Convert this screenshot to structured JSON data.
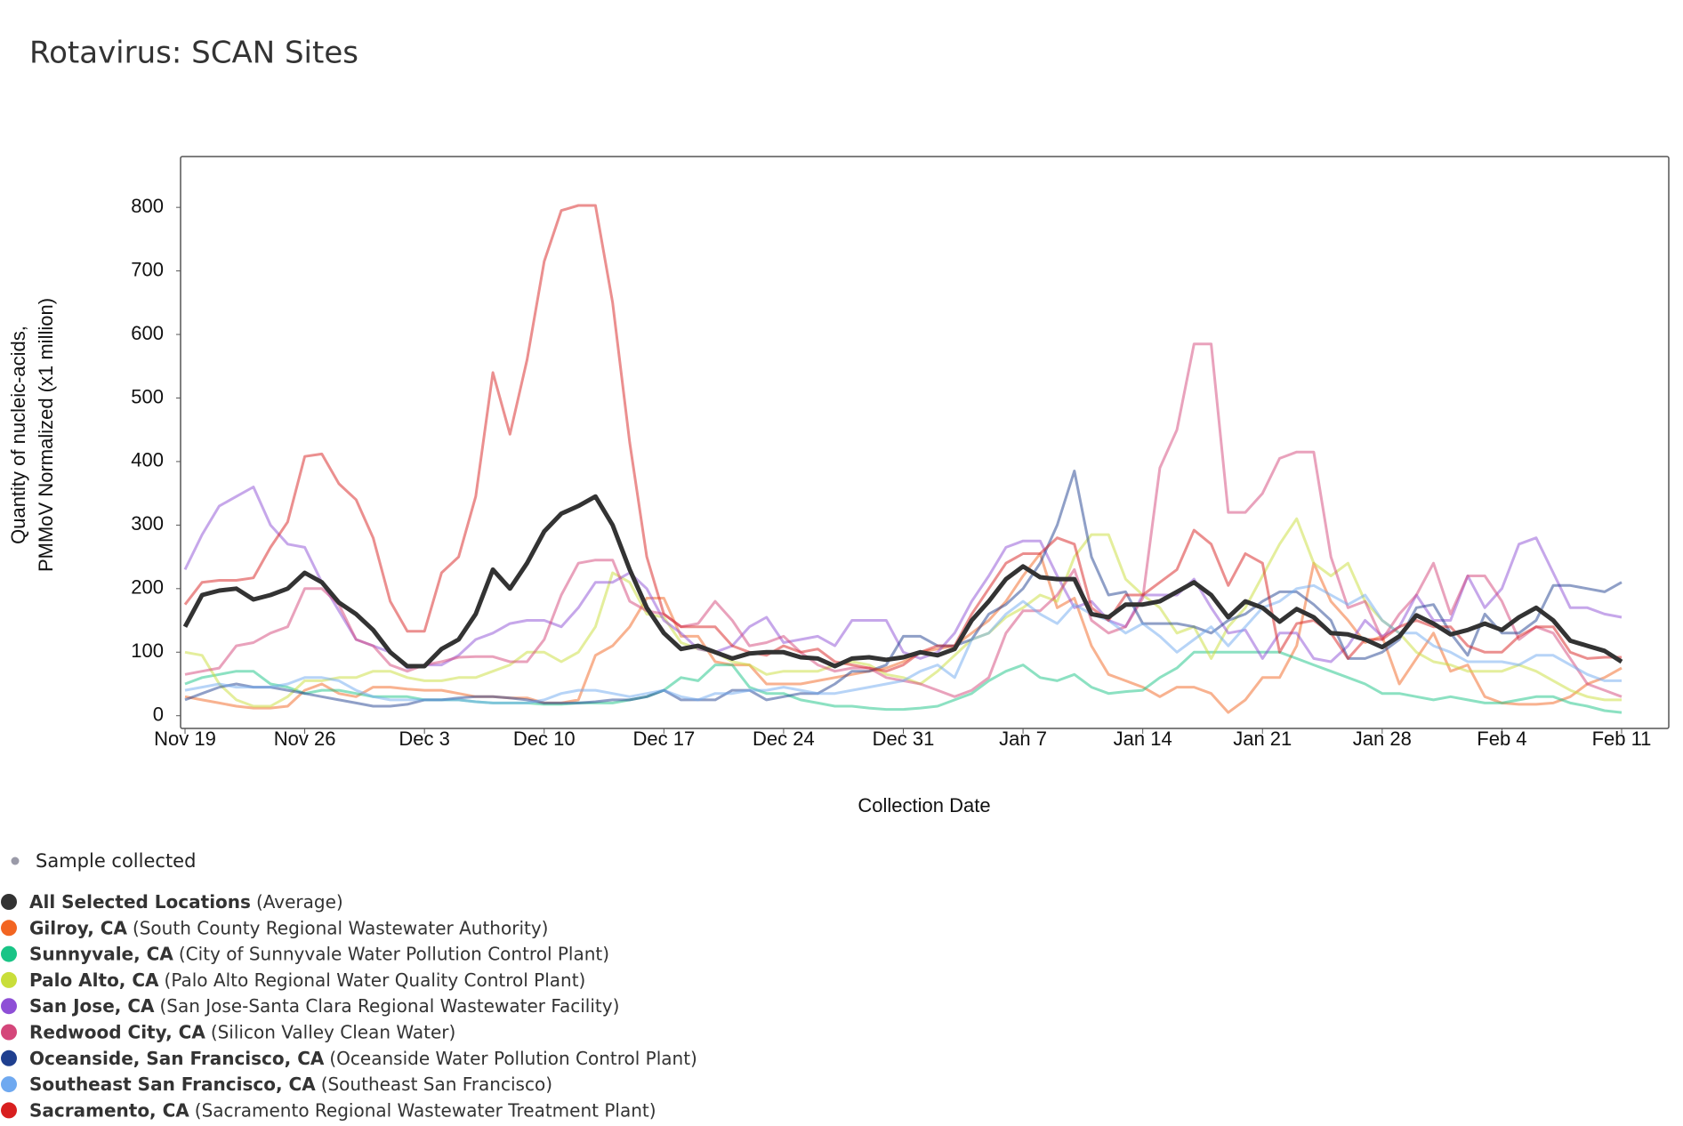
{
  "chart_data": {
    "type": "line",
    "title": "Rotavirus: SCAN Sites",
    "y_label": [
      "Quantity of nucleic-acids,",
      "PMMoV Normalized (x1 million)"
    ],
    "x_label": "Collection Date",
    "sample_label": "Sample collected",
    "sample_color": "#9a9aa8",
    "categories": [
      "Nov 19",
      null,
      null,
      null,
      null,
      null,
      null,
      "Nov 26",
      null,
      null,
      null,
      null,
      null,
      null,
      "Dec 3",
      null,
      null,
      null,
      null,
      null,
      null,
      "Dec 10",
      null,
      null,
      null,
      null,
      null,
      null,
      "Dec 17",
      null,
      null,
      null,
      null,
      null,
      null,
      "Dec 24",
      null,
      null,
      null,
      null,
      null,
      null,
      "Dec 31",
      null,
      null,
      null,
      null,
      null,
      null,
      "Jan 7",
      null,
      null,
      null,
      null,
      null,
      null,
      "Jan 14",
      null,
      null,
      null,
      null,
      null,
      null,
      "Jan 21",
      null,
      null,
      null,
      null,
      null,
      null,
      "Jan 28",
      null,
      null,
      null,
      null,
      null,
      null,
      "Feb 4",
      null,
      null,
      null,
      null,
      null,
      null,
      "Feb 11"
    ],
    "ylim": [
      -20,
      880
    ],
    "yticks": [
      0,
      100,
      200,
      300,
      400,
      500,
      600,
      700,
      800
    ],
    "series": [
      {
        "name": "Gilroy, CA",
        "detail": "(South County Regional Wastewater Authority)",
        "color": "#f26522",
        "values": [
          30,
          25,
          20,
          15,
          12,
          12,
          15,
          40,
          50,
          35,
          30,
          45,
          45,
          42,
          40,
          40,
          35,
          30,
          30,
          28,
          28,
          20,
          20,
          25,
          95,
          110,
          140,
          185,
          185,
          125,
          125,
          85,
          80,
          80,
          50,
          50,
          50,
          55,
          60,
          65,
          70,
          75,
          85,
          100,
          105,
          110,
          130,
          150,
          180,
          220,
          255,
          170,
          185,
          110,
          65,
          55,
          45,
          30,
          45,
          45,
          35,
          5,
          25,
          60,
          60,
          110,
          240,
          180,
          150,
          115,
          125,
          50,
          90,
          130,
          70,
          80,
          30,
          20,
          18,
          18,
          20,
          30,
          50,
          60,
          75
        ]
      },
      {
        "name": "Sunnyvale, CA",
        "detail": "(City of Sunnyvale Water Pollution Control Plant)",
        "color": "#19c486",
        "values": [
          50,
          60,
          65,
          70,
          70,
          50,
          45,
          35,
          40,
          40,
          35,
          30,
          30,
          30,
          25,
          25,
          25,
          22,
          20,
          20,
          20,
          18,
          18,
          20,
          20,
          20,
          25,
          30,
          40,
          60,
          55,
          80,
          80,
          45,
          35,
          35,
          25,
          20,
          15,
          15,
          12,
          10,
          10,
          12,
          15,
          25,
          35,
          55,
          70,
          80,
          60,
          55,
          65,
          45,
          35,
          38,
          40,
          60,
          75,
          100,
          100,
          100,
          100,
          100,
          100,
          90,
          80,
          70,
          60,
          50,
          35,
          35,
          30,
          25,
          30,
          25,
          20,
          20,
          25,
          30,
          30,
          20,
          15,
          8,
          5
        ]
      },
      {
        "name": "Palo Alto, CA",
        "detail": "(Palo Alto Regional Water Quality Control Plant)",
        "color": "#c9de3a",
        "values": [
          100,
          95,
          50,
          25,
          15,
          15,
          30,
          55,
          55,
          60,
          60,
          70,
          70,
          60,
          55,
          55,
          60,
          60,
          70,
          80,
          100,
          100,
          85,
          100,
          140,
          225,
          210,
          160,
          155,
          115,
          105,
          100,
          85,
          80,
          65,
          70,
          70,
          70,
          80,
          85,
          80,
          65,
          60,
          50,
          70,
          95,
          120,
          130,
          155,
          170,
          190,
          180,
          250,
          285,
          285,
          215,
          190,
          170,
          130,
          140,
          90,
          140,
          170,
          220,
          270,
          310,
          240,
          220,
          240,
          180,
          150,
          130,
          100,
          85,
          80,
          70,
          70,
          70,
          80,
          70,
          55,
          40,
          30,
          25,
          25
        ]
      },
      {
        "name": "San Jose, CA",
        "detail": "(San Jose-Santa Clara Regional Wastewater Facility)",
        "color": "#8e4fd6",
        "values": [
          230,
          285,
          330,
          345,
          360,
          300,
          270,
          265,
          210,
          165,
          120,
          110,
          100,
          75,
          80,
          80,
          95,
          120,
          130,
          145,
          150,
          150,
          140,
          170,
          210,
          210,
          225,
          200,
          150,
          130,
          105,
          100,
          110,
          140,
          155,
          115,
          120,
          125,
          110,
          150,
          150,
          150,
          100,
          90,
          100,
          130,
          180,
          220,
          265,
          275,
          275,
          220,
          170,
          180,
          150,
          140,
          190,
          190,
          190,
          215,
          170,
          130,
          135,
          90,
          130,
          130,
          90,
          85,
          110,
          150,
          125,
          140,
          190,
          150,
          150,
          220,
          170,
          200,
          270,
          280,
          225,
          170,
          170,
          160,
          155
        ]
      },
      {
        "name": "Redwood City, CA",
        "detail": "(Silicon Valley Clean Water)",
        "color": "#d4467a",
        "values": [
          65,
          70,
          75,
          110,
          115,
          130,
          140,
          200,
          200,
          175,
          120,
          110,
          80,
          70,
          80,
          85,
          92,
          93,
          93,
          85,
          85,
          120,
          190,
          240,
          245,
          245,
          180,
          165,
          160,
          140,
          145,
          180,
          150,
          110,
          115,
          125,
          100,
          80,
          70,
          75,
          75,
          60,
          55,
          50,
          40,
          30,
          40,
          60,
          130,
          165,
          165,
          190,
          230,
          150,
          130,
          140,
          185,
          390,
          450,
          585,
          585,
          320,
          320,
          350,
          405,
          415,
          415,
          250,
          170,
          180,
          120,
          160,
          190,
          240,
          160,
          220,
          220,
          180,
          120,
          140,
          130,
          90,
          50,
          40,
          30
        ]
      },
      {
        "name": "Oceanside, San Francisco, CA",
        "detail": "(Oceanside Water Pollution Control Plant)",
        "color": "#1f3f8f",
        "values": [
          25,
          35,
          45,
          50,
          45,
          45,
          40,
          35,
          30,
          25,
          20,
          15,
          15,
          18,
          25,
          25,
          28,
          30,
          30,
          28,
          25,
          20,
          20,
          20,
          22,
          25,
          25,
          30,
          40,
          25,
          25,
          25,
          40,
          40,
          25,
          30,
          35,
          35,
          50,
          70,
          70,
          80,
          125,
          125,
          110,
          110,
          120,
          160,
          175,
          200,
          240,
          300,
          385,
          250,
          190,
          195,
          145,
          145,
          145,
          140,
          130,
          150,
          160,
          180,
          195,
          195,
          175,
          150,
          90,
          90,
          100,
          120,
          170,
          175,
          130,
          95,
          160,
          130,
          130,
          150,
          205,
          205,
          200,
          195,
          210
        ]
      },
      {
        "name": "Southeast San Francisco, CA",
        "detail": "(Southeast San Francisco)",
        "color": "#6fa9f0",
        "values": [
          40,
          45,
          50,
          45,
          45,
          45,
          50,
          60,
          60,
          55,
          40,
          30,
          25,
          25,
          25,
          25,
          25,
          22,
          20,
          20,
          20,
          25,
          35,
          40,
          40,
          35,
          30,
          35,
          40,
          30,
          25,
          35,
          35,
          40,
          40,
          45,
          40,
          35,
          35,
          40,
          45,
          50,
          55,
          70,
          80,
          60,
          120,
          130,
          160,
          180,
          160,
          145,
          175,
          160,
          150,
          130,
          145,
          125,
          100,
          120,
          140,
          110,
          140,
          170,
          180,
          200,
          205,
          190,
          175,
          190,
          150,
          130,
          130,
          110,
          100,
          85,
          85,
          85,
          80,
          95,
          95,
          80,
          65,
          55,
          55
        ]
      },
      {
        "name": "Sacramento, CA",
        "detail": "(Sacramento Regional Wastewater Treatment Plant)",
        "color": "#d81f1f",
        "values": [
          175,
          210,
          213,
          213,
          217,
          265,
          305,
          408,
          412,
          365,
          340,
          280,
          180,
          133,
          133,
          225,
          250,
          345,
          540,
          443,
          560,
          715,
          795,
          803,
          803,
          650,
          430,
          250,
          160,
          140,
          140,
          140,
          110,
          100,
          95,
          110,
          100,
          105,
          85,
          80,
          75,
          70,
          80,
          100,
          110,
          110,
          160,
          200,
          240,
          255,
          255,
          280,
          270,
          170,
          150,
          190,
          190,
          210,
          230,
          292,
          270,
          205,
          255,
          240,
          100,
          145,
          150,
          130,
          90,
          120,
          120,
          140,
          150,
          140,
          140,
          110,
          100,
          100,
          125,
          140,
          140,
          100,
          90,
          92,
          92
        ]
      },
      {
        "name": "All Selected Locations",
        "detail": "(Average)",
        "color": "#333333",
        "values": [
          140,
          190,
          197,
          200,
          183,
          190,
          200,
          225,
          210,
          178,
          160,
          135,
          100,
          78,
          78,
          105,
          120,
          160,
          230,
          200,
          240,
          290,
          318,
          330,
          345,
          300,
          230,
          170,
          130,
          105,
          110,
          100,
          90,
          98,
          100,
          100,
          92,
          90,
          78,
          90,
          92,
          88,
          92,
          100,
          95,
          105,
          150,
          180,
          215,
          235,
          218,
          215,
          215,
          160,
          155,
          175,
          175,
          180,
          195,
          210,
          190,
          155,
          180,
          170,
          148,
          168,
          155,
          130,
          128,
          120,
          108,
          125,
          158,
          145,
          128,
          135,
          145,
          135,
          155,
          170,
          150,
          118,
          110,
          102,
          85
        ]
      }
    ],
    "legend_order": [
      8,
      0,
      1,
      2,
      3,
      4,
      5,
      6,
      7
    ]
  }
}
